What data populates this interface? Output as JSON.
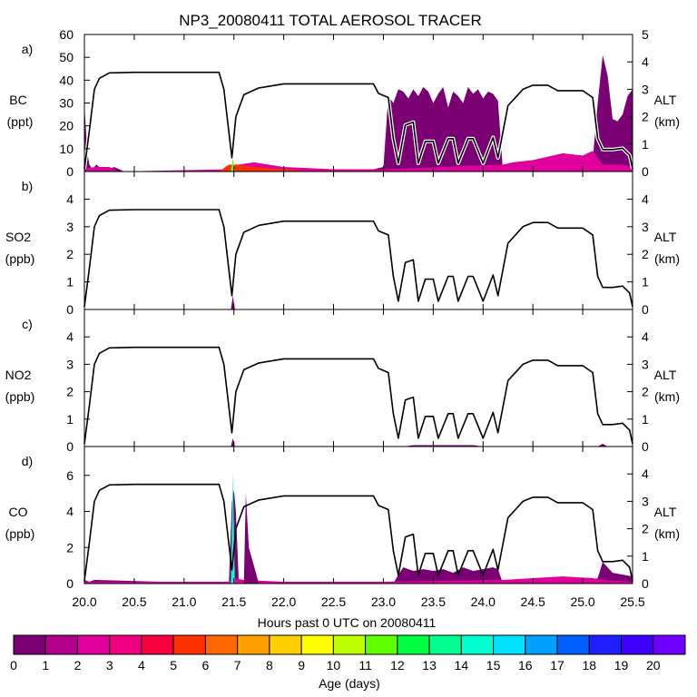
{
  "title": "NP3_20080411 TOTAL AEROSOL TRACER",
  "xlabel": "Hours past 0 UTC on 20080411",
  "colorbar_label": "Age (days)",
  "colorbar_ticks": [
    "0",
    "1",
    "2",
    "3",
    "4",
    "5",
    "6",
    "7",
    "8",
    "9",
    "10",
    "11",
    "12",
    "13",
    "14",
    "15",
    "16",
    "17",
    "18",
    "19",
    "20"
  ],
  "colorbar_colors": [
    "#7a0074",
    "#b0008c",
    "#e0009c",
    "#f00080",
    "#f80040",
    "#ff3000",
    "#ff6800",
    "#ffa000",
    "#ffd000",
    "#ffff00",
    "#c0ff00",
    "#60ff00",
    "#00ff40",
    "#00ff90",
    "#00ffd0",
    "#00e0ff",
    "#00a0ff",
    "#0060ff",
    "#2020ff",
    "#4000ff",
    "#7000ff"
  ],
  "x_ticks": [
    "20.0",
    "20.5",
    "21.0",
    "21.5",
    "22.0",
    "22.5",
    "23.0",
    "23.5",
    "24.0",
    "24.5",
    "25.0",
    "25.5"
  ],
  "alt_label": "ALT",
  "alt_unit": "(km)",
  "alt_ticks": [
    "0",
    "1",
    "2",
    "3",
    "4"
  ],
  "alt_ticks_a": [
    "0",
    "1",
    "2",
    "3",
    "4",
    "5"
  ],
  "panels": [
    {
      "id": "a",
      "tag": "a)",
      "name": "BC",
      "unit": "(ppt)",
      "left_ticks": [
        "0",
        "10",
        "20",
        "30",
        "40",
        "50",
        "60"
      ]
    },
    {
      "id": "b",
      "tag": "b)",
      "name": "SO2",
      "unit": "(ppb)",
      "left_ticks": [
        "0",
        "1",
        "2",
        "3",
        "4"
      ]
    },
    {
      "id": "c",
      "tag": "c)",
      "name": "NO2",
      "unit": "(ppb)",
      "left_ticks": [
        "0",
        "1",
        "2",
        "3",
        "4"
      ]
    },
    {
      "id": "d",
      "tag": "d)",
      "name": "CO",
      "unit": "(ppb)",
      "left_ticks": [
        "0",
        "2",
        "4",
        "6"
      ]
    }
  ],
  "chart_data": [
    {
      "type": "area",
      "panel": "a",
      "xlim": [
        20.0,
        25.5
      ],
      "ylim": [
        0,
        60
      ],
      "y2lim": [
        0,
        5
      ],
      "series": [
        {
          "axis": "right",
          "style": "line",
          "color": "#000000",
          "x": [
            20.0,
            20.05,
            20.1,
            20.15,
            20.25,
            20.5,
            21.0,
            21.35,
            21.4,
            21.48,
            21.52,
            21.6,
            21.75,
            22.0,
            22.5,
            22.9,
            22.95,
            23.05,
            23.1,
            23.15,
            23.22,
            23.3,
            23.35,
            23.42,
            23.5,
            23.55,
            23.65,
            23.7,
            23.75,
            23.85,
            23.9,
            24.0,
            24.1,
            24.15,
            24.25,
            24.4,
            24.5,
            24.65,
            24.75,
            25.0,
            25.1,
            25.15,
            25.2,
            25.3,
            25.4,
            25.47,
            25.5
          ],
          "y": [
            0.1,
            1.5,
            3.0,
            3.4,
            3.6,
            3.62,
            3.62,
            3.62,
            3.0,
            0.5,
            2.0,
            2.8,
            3.05,
            3.2,
            3.2,
            3.2,
            2.85,
            2.7,
            1.2,
            0.3,
            1.7,
            1.8,
            0.3,
            1.1,
            1.1,
            0.3,
            1.2,
            1.2,
            0.3,
            1.2,
            1.2,
            0.3,
            1.25,
            0.5,
            2.4,
            3.0,
            3.15,
            3.15,
            2.95,
            2.95,
            2.7,
            1.2,
            0.8,
            0.8,
            0.85,
            0.6,
            0.1
          ]
        },
        {
          "axis": "left",
          "style": "area",
          "color": "#7a0074",
          "x": [
            20.0,
            20.03,
            20.05,
            20.08,
            20.12,
            20.2,
            20.3,
            20.4,
            21.45,
            21.5,
            22.9,
            23.0,
            23.05,
            23.1,
            23.15,
            23.2,
            23.25,
            23.3,
            23.35,
            23.4,
            23.45,
            23.5,
            23.55,
            23.6,
            23.65,
            23.7,
            23.75,
            23.8,
            23.85,
            23.9,
            23.95,
            24.0,
            24.05,
            24.1,
            24.15,
            24.2,
            24.5,
            25.0,
            25.1,
            25.15,
            25.2,
            25.25,
            25.3,
            25.35,
            25.4,
            25.45,
            25.5
          ],
          "y": [
            29,
            8,
            3,
            1,
            3,
            0,
            2,
            0,
            0,
            1,
            1,
            2,
            33,
            30,
            36,
            35,
            32,
            36,
            33,
            37,
            35,
            30,
            34,
            37,
            28,
            35,
            33,
            30,
            37,
            34,
            36,
            32,
            35,
            34,
            31,
            0,
            0,
            0,
            5,
            30,
            51,
            42,
            23,
            22,
            25,
            33,
            36
          ]
        },
        {
          "axis": "left",
          "style": "area",
          "color": "#e0009c",
          "x": [
            20.0,
            20.1,
            20.25,
            20.35,
            21.45,
            21.5,
            21.55,
            21.7,
            22.0,
            22.5,
            22.9,
            23.0,
            24.2,
            24.3,
            24.5,
            24.6,
            24.8,
            25.0,
            25.1,
            25.2,
            25.3,
            25.4,
            25.5
          ],
          "y": [
            1,
            2,
            2,
            0,
            1,
            2,
            3,
            4,
            2,
            1,
            1,
            1,
            3,
            4,
            5,
            6,
            8,
            7,
            9,
            3,
            3,
            3,
            2
          ]
        },
        {
          "axis": "left",
          "style": "area",
          "color": "#ff3000",
          "x": [
            21.35,
            21.45,
            21.55,
            21.7,
            22.0,
            22.3
          ],
          "y": [
            0,
            3,
            3,
            2,
            1,
            0
          ]
        },
        {
          "axis": "left",
          "style": "area",
          "color": "#60ff00",
          "x": [
            21.47,
            21.49,
            21.51
          ],
          "y": [
            0,
            6,
            0
          ]
        }
      ]
    },
    {
      "type": "area",
      "panel": "b",
      "xlim": [
        20.0,
        25.5
      ],
      "ylim": [
        0,
        5
      ],
      "y2lim": [
        0,
        5
      ],
      "series": [
        {
          "axis": "right",
          "style": "line",
          "color": "#000000",
          "x": [
            20.0,
            20.05,
            20.1,
            20.15,
            20.25,
            20.5,
            21.0,
            21.35,
            21.4,
            21.48,
            21.52,
            21.6,
            21.75,
            22.0,
            22.5,
            22.9,
            22.95,
            23.05,
            23.1,
            23.15,
            23.22,
            23.3,
            23.35,
            23.42,
            23.5,
            23.55,
            23.65,
            23.7,
            23.75,
            23.85,
            23.9,
            24.0,
            24.1,
            24.15,
            24.25,
            24.4,
            24.5,
            24.65,
            24.75,
            25.0,
            25.1,
            25.15,
            25.2,
            25.3,
            25.4,
            25.47,
            25.5
          ],
          "y": [
            0.1,
            1.5,
            3.0,
            3.4,
            3.6,
            3.62,
            3.62,
            3.62,
            3.0,
            0.5,
            2.0,
            2.8,
            3.05,
            3.2,
            3.2,
            3.2,
            2.85,
            2.7,
            1.2,
            0.3,
            1.7,
            1.8,
            0.3,
            1.1,
            1.1,
            0.3,
            1.2,
            1.2,
            0.3,
            1.2,
            1.2,
            0.3,
            1.25,
            0.5,
            2.4,
            3.0,
            3.15,
            3.15,
            2.95,
            2.95,
            2.7,
            1.2,
            0.8,
            0.8,
            0.85,
            0.6,
            0.1
          ]
        },
        {
          "axis": "left",
          "style": "area",
          "color": "#7a0074",
          "x": [
            21.47,
            21.49,
            21.51
          ],
          "y": [
            0,
            0.5,
            0
          ]
        }
      ]
    },
    {
      "type": "area",
      "panel": "c",
      "xlim": [
        20.0,
        25.5
      ],
      "ylim": [
        0,
        5
      ],
      "y2lim": [
        0,
        5
      ],
      "series": [
        {
          "axis": "right",
          "style": "line",
          "color": "#000000",
          "x": [
            20.0,
            20.05,
            20.1,
            20.15,
            20.25,
            20.5,
            21.0,
            21.35,
            21.4,
            21.48,
            21.52,
            21.6,
            21.75,
            22.0,
            22.5,
            22.9,
            22.95,
            23.05,
            23.1,
            23.15,
            23.22,
            23.3,
            23.35,
            23.42,
            23.5,
            23.55,
            23.65,
            23.7,
            23.75,
            23.85,
            23.9,
            24.0,
            24.1,
            24.15,
            24.25,
            24.4,
            24.5,
            24.65,
            24.75,
            25.0,
            25.1,
            25.15,
            25.2,
            25.3,
            25.4,
            25.47,
            25.5
          ],
          "y": [
            0.1,
            1.5,
            3.0,
            3.4,
            3.6,
            3.62,
            3.62,
            3.62,
            3.0,
            0.5,
            2.0,
            2.8,
            3.05,
            3.2,
            3.2,
            3.2,
            2.85,
            2.7,
            1.2,
            0.3,
            1.7,
            1.8,
            0.3,
            1.1,
            1.1,
            0.3,
            1.2,
            1.2,
            0.3,
            1.2,
            1.2,
            0.3,
            1.25,
            0.5,
            2.4,
            3.0,
            3.15,
            3.15,
            2.95,
            2.95,
            2.7,
            1.2,
            0.8,
            0.8,
            0.85,
            0.6,
            0.1
          ]
        },
        {
          "axis": "left",
          "style": "area",
          "color": "#7a0074",
          "x": [
            21.47,
            21.49,
            21.51,
            23.2,
            23.3,
            23.4,
            23.6,
            23.8,
            23.9,
            24.0,
            25.15,
            25.2,
            25.25
          ],
          "y": [
            0,
            0.3,
            0,
            0,
            0.05,
            0.05,
            0.05,
            0.05,
            0.05,
            0,
            0,
            0.1,
            0
          ]
        }
      ]
    },
    {
      "type": "area",
      "panel": "d",
      "xlim": [
        20.0,
        25.5
      ],
      "ylim": [
        0,
        7.6
      ],
      "y2lim": [
        0,
        5
      ],
      "series": [
        {
          "axis": "right",
          "style": "line",
          "color": "#000000",
          "x": [
            20.0,
            20.05,
            20.1,
            20.15,
            20.25,
            20.5,
            21.0,
            21.35,
            21.4,
            21.48,
            21.52,
            21.6,
            21.75,
            22.0,
            22.5,
            22.9,
            22.95,
            23.05,
            23.1,
            23.15,
            23.22,
            23.3,
            23.35,
            23.42,
            23.5,
            23.55,
            23.65,
            23.7,
            23.75,
            23.85,
            23.9,
            24.0,
            24.1,
            24.15,
            24.25,
            24.4,
            24.5,
            24.65,
            24.75,
            25.0,
            25.1,
            25.15,
            25.2,
            25.3,
            25.4,
            25.47,
            25.5
          ],
          "y": [
            0.1,
            1.5,
            3.0,
            3.4,
            3.6,
            3.62,
            3.62,
            3.62,
            3.0,
            0.5,
            2.0,
            2.8,
            3.05,
            3.2,
            3.2,
            3.2,
            2.85,
            2.7,
            1.2,
            0.3,
            1.7,
            1.8,
            0.3,
            1.1,
            1.1,
            0.3,
            1.2,
            1.2,
            0.3,
            1.2,
            1.2,
            0.3,
            1.25,
            0.5,
            2.4,
            3.0,
            3.15,
            3.15,
            2.95,
            2.95,
            2.7,
            1.2,
            0.8,
            0.8,
            0.85,
            0.6,
            0.1
          ]
        },
        {
          "axis": "left",
          "style": "area",
          "color": "#7a0074",
          "x": [
            20.0,
            20.05,
            20.1,
            21.45,
            21.48,
            21.5,
            21.52,
            21.55,
            23.1,
            23.15,
            23.2,
            23.3,
            23.4,
            23.5,
            23.6,
            23.7,
            23.8,
            23.9,
            24.0,
            24.1,
            24.15,
            24.2,
            25.0,
            25.15,
            25.2,
            25.25,
            25.3,
            25.4,
            25.5
          ],
          "y": [
            0.2,
            0.1,
            0.2,
            0,
            4.5,
            5.2,
            4.0,
            0,
            0,
            0.5,
            0.9,
            0.7,
            0.8,
            0.7,
            0.8,
            0.6,
            0.9,
            0.7,
            0.8,
            0.9,
            0.8,
            0,
            0,
            0.3,
            1.2,
            0.9,
            0.6,
            0.5,
            0.4
          ]
        },
        {
          "axis": "left",
          "style": "area",
          "color": "#e0009c",
          "x": [
            20.0,
            20.1,
            21.45,
            21.5,
            21.6,
            22.0,
            23.0,
            24.2,
            24.5,
            24.8,
            25.1,
            25.2,
            25.5
          ],
          "y": [
            0.1,
            0.1,
            0.1,
            0.3,
            0.2,
            0.1,
            0.1,
            0.2,
            0.3,
            0.4,
            0.3,
            0.2,
            0.1
          ]
        },
        {
          "axis": "left",
          "style": "area",
          "color": "#00ffd0",
          "x": [
            21.47,
            21.49,
            21.51
          ],
          "y": [
            0,
            6.2,
            0
          ]
        },
        {
          "axis": "left",
          "style": "area",
          "color": "#7a0074",
          "x": [
            21.6,
            21.62,
            21.65,
            21.7,
            21.75
          ],
          "y": [
            0,
            5.0,
            2.0,
            1.0,
            0
          ]
        }
      ]
    }
  ]
}
